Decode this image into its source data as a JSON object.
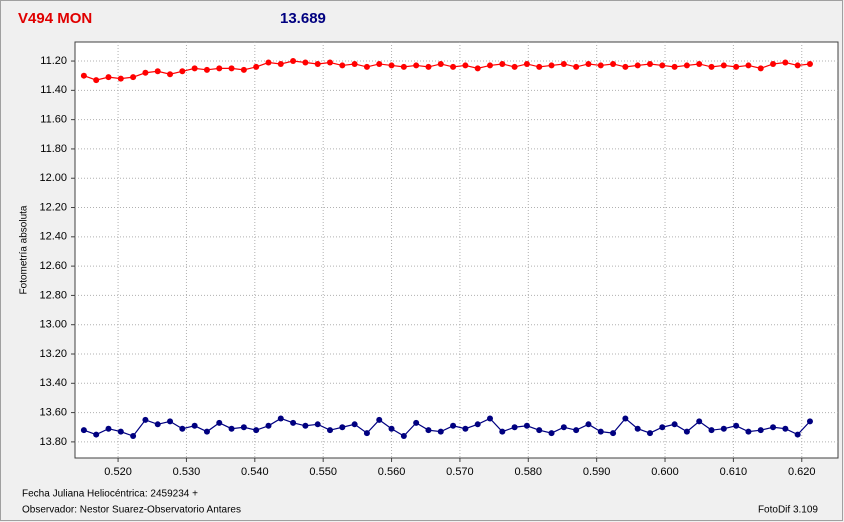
{
  "chart_data": {
    "type": "line",
    "title": "V494 MON",
    "subtitle": "13.689",
    "y_label": "Fotometría absoluta",
    "x_label": "Fecha Juliana Heliocéntrica: 2459234 +",
    "observer": "Observador: Nestor Suarez-Observatorio Antares",
    "software": "FotoDif 3.109",
    "xlim": [
      0.5137,
      0.6253
    ],
    "ylim": [
      11.07,
      13.91
    ],
    "y_inverted": true,
    "grid": true,
    "xticks": [
      {
        "value": 0.52,
        "label": "0.520"
      },
      {
        "value": 0.53,
        "label": "0.530"
      },
      {
        "value": 0.54,
        "label": "0.540"
      },
      {
        "value": 0.55,
        "label": "0.550"
      },
      {
        "value": 0.56,
        "label": "0.560"
      },
      {
        "value": 0.57,
        "label": "0.570"
      },
      {
        "value": 0.58,
        "label": "0.580"
      },
      {
        "value": 0.59,
        "label": "0.590"
      },
      {
        "value": 0.6,
        "label": "0.600"
      },
      {
        "value": 0.61,
        "label": "0.610"
      },
      {
        "value": 0.62,
        "label": "0.620"
      }
    ],
    "yticks": [
      {
        "value": 11.2,
        "label": "11.20"
      },
      {
        "value": 11.4,
        "label": "11.40"
      },
      {
        "value": 11.6,
        "label": "11.60"
      },
      {
        "value": 11.8,
        "label": "11.80"
      },
      {
        "value": 12.0,
        "label": "12.00"
      },
      {
        "value": 12.2,
        "label": "12.20"
      },
      {
        "value": 12.4,
        "label": "12.40"
      },
      {
        "value": 12.6,
        "label": "12.60"
      },
      {
        "value": 12.8,
        "label": "12.80"
      },
      {
        "value": 13.0,
        "label": "13.00"
      },
      {
        "value": 13.2,
        "label": "13.20"
      },
      {
        "value": 13.4,
        "label": "13.40"
      },
      {
        "value": 13.6,
        "label": "13.60"
      },
      {
        "value": 13.8,
        "label": "13.80"
      }
    ],
    "x": [
      0.515,
      0.5168,
      0.5186,
      0.5204,
      0.5222,
      0.524,
      0.5258,
      0.5276,
      0.5294,
      0.5312,
      0.533,
      0.5348,
      0.5366,
      0.5384,
      0.5402,
      0.542,
      0.5438,
      0.5456,
      0.5474,
      0.5492,
      0.551,
      0.5528,
      0.5546,
      0.5564,
      0.5582,
      0.56,
      0.5618,
      0.5636,
      0.5654,
      0.5672,
      0.569,
      0.5708,
      0.5726,
      0.5744,
      0.5762,
      0.578,
      0.5798,
      0.5816,
      0.5834,
      0.5852,
      0.587,
      0.5888,
      0.5906,
      0.5924,
      0.5942,
      0.596,
      0.5978,
      0.5996,
      0.6014,
      0.6032,
      0.605,
      0.6068,
      0.6086,
      0.6104,
      0.6122,
      0.614,
      0.6158,
      0.6176,
      0.6194,
      0.6212
    ],
    "series": [
      {
        "color": "#ff0000",
        "values": [
          11.3,
          11.33,
          11.31,
          11.32,
          11.31,
          11.28,
          11.27,
          11.29,
          11.27,
          11.25,
          11.26,
          11.25,
          11.25,
          11.26,
          11.24,
          11.21,
          11.22,
          11.2,
          11.21,
          11.22,
          11.21,
          11.23,
          11.22,
          11.24,
          11.22,
          11.23,
          11.24,
          11.23,
          11.24,
          11.22,
          11.24,
          11.23,
          11.25,
          11.23,
          11.22,
          11.24,
          11.22,
          11.24,
          11.23,
          11.22,
          11.24,
          11.22,
          11.23,
          11.22,
          11.24,
          11.23,
          11.22,
          11.23,
          11.24,
          11.23,
          11.22,
          11.24,
          11.23,
          11.24,
          11.23,
          11.25,
          11.22,
          11.21,
          11.23,
          11.22
        ]
      },
      {
        "color": "#000080",
        "values": [
          13.72,
          13.75,
          13.71,
          13.73,
          13.76,
          13.65,
          13.68,
          13.66,
          13.71,
          13.69,
          13.73,
          13.67,
          13.71,
          13.7,
          13.72,
          13.69,
          13.64,
          13.67,
          13.69,
          13.68,
          13.72,
          13.7,
          13.68,
          13.74,
          13.65,
          13.71,
          13.76,
          13.67,
          13.72,
          13.73,
          13.69,
          13.71,
          13.68,
          13.64,
          13.73,
          13.7,
          13.69,
          13.72,
          13.74,
          13.7,
          13.72,
          13.68,
          13.73,
          13.74,
          13.64,
          13.71,
          13.74,
          13.7,
          13.68,
          13.73,
          13.66,
          13.72,
          13.71,
          13.69,
          13.73,
          13.72,
          13.7,
          13.71,
          13.75,
          13.66
        ]
      }
    ]
  }
}
